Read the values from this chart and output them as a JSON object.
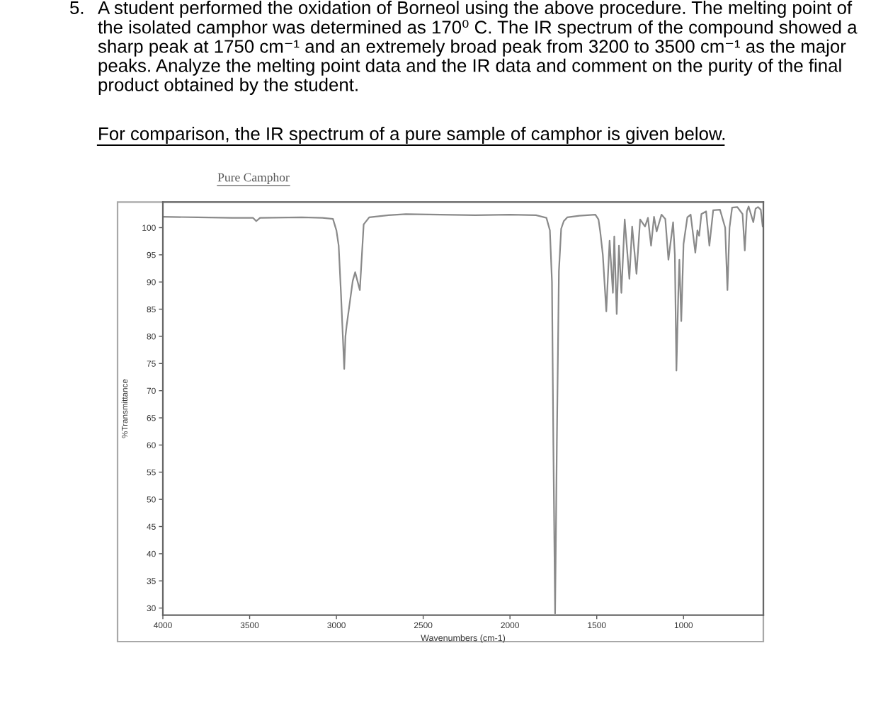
{
  "chart_data": {
    "type": "line",
    "title": "Pure Camphor",
    "xlabel": "Wavenumbers (cm-1)",
    "ylabel": "%Transmittance",
    "annotations": [
      "5.",
      "A student performed the oxidation of Borneol using the above procedure. The melting point of the isolated camphor was determined as 170⁰ C. The IR spectrum of the compound showed a sharp peak at 1750 cm⁻¹ and an extremely broad peak from 3200 to 3500 cm⁻¹ as the major peaks. Analyze the melting point data and the IR data and comment on the purity of the final product obtained by the student.",
      "For comparison, the IR spectrum of a pure sample of camphor is given below."
    ],
    "x": [
      4000,
      3800,
      3600,
      3480,
      3462,
      3440,
      3200,
      3080,
      3020,
      3000,
      2987,
      2974,
      2955,
      2948,
      2941,
      2906,
      2892,
      2865,
      2843,
      2811,
      2700,
      2600,
      2400,
      2200,
      2000,
      1850,
      1790,
      1770,
      1758,
      1750,
      1740,
      1730,
      1718,
      1705,
      1690,
      1670,
      1600,
      1508,
      1490,
      1480,
      1465,
      1445,
      1426,
      1407,
      1399,
      1385,
      1372,
      1358,
      1339,
      1312,
      1296,
      1271,
      1250,
      1222,
      1205,
      1187,
      1170,
      1155,
      1127,
      1105,
      1087,
      1060,
      1050,
      1041,
      1030,
      1024,
      1013,
      1000,
      978,
      959,
      932,
      920,
      910,
      897,
      870,
      851,
      829,
      790,
      760,
      747,
      735,
      720,
      690,
      660,
      647,
      635,
      625,
      598,
      585,
      571,
      555,
      544
    ],
    "series": [
      {
        "color": "#8a8a8a",
        "values": [
          102.0,
          101.9,
          101.8,
          101.8,
          101.2,
          101.8,
          101.9,
          101.8,
          101.6,
          99.5,
          96.7,
          88.0,
          74.0,
          80.0,
          82.0,
          90.2,
          91.8,
          88.5,
          100.6,
          101.9,
          102.3,
          102.5,
          102.4,
          102.3,
          102.4,
          102.3,
          101.8,
          99.5,
          90.0,
          60.0,
          29.0,
          60.0,
          92.0,
          99.8,
          101.2,
          101.9,
          102.2,
          102.4,
          101.5,
          99.3,
          95.0,
          84.6,
          97.6,
          88.0,
          98.4,
          84.1,
          96.7,
          88.0,
          101.5,
          90.6,
          100.2,
          91.5,
          101.5,
          100.2,
          101.8,
          96.7,
          102.0,
          99.3,
          102.4,
          101.6,
          94.1,
          101.0,
          95.0,
          73.7,
          88.0,
          94.1,
          82.8,
          97.0,
          101.9,
          102.4,
          95.4,
          99.5,
          98.5,
          102.5,
          103.0,
          96.7,
          103.2,
          103.3,
          100.0,
          88.5,
          100.0,
          103.7,
          103.8,
          102.5,
          95.8,
          103.0,
          103.9,
          101.0,
          103.5,
          103.8,
          103.3,
          100.2
        ]
      }
    ],
    "xlim": [
      4000,
      540
    ],
    "ylim": [
      28.7,
      104.7
    ],
    "xticks": [
      4000,
      3500,
      3000,
      2500,
      2000,
      1500,
      1000
    ],
    "yticks": [
      30,
      35,
      40,
      45,
      50,
      55,
      60,
      65,
      70,
      75,
      80,
      85,
      90,
      95,
      100
    ]
  }
}
